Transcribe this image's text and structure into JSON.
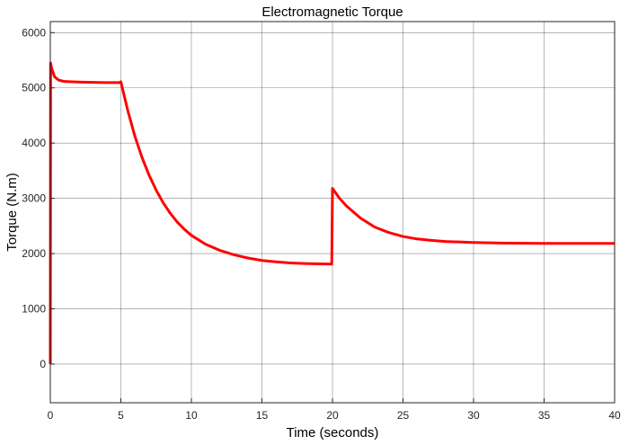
{
  "chart_data": {
    "type": "line",
    "title": "Electromagnetic Torque",
    "xlabel": "Time (seconds)",
    "ylabel": "Torque (N.m)",
    "xlim": [
      0,
      40
    ],
    "ylim": [
      -700,
      6200
    ],
    "xticks": [
      0,
      5,
      10,
      15,
      20,
      25,
      30,
      35,
      40
    ],
    "yticks": [
      0,
      1000,
      2000,
      3000,
      4000,
      5000,
      6000
    ],
    "grid": true,
    "line_color": "#ff0000",
    "series": [
      {
        "values": [
          [
            0,
            0
          ],
          [
            0.02,
            5450
          ],
          [
            0.1,
            5350
          ],
          [
            0.3,
            5200
          ],
          [
            0.6,
            5140
          ],
          [
            1.0,
            5115
          ],
          [
            2.0,
            5105
          ],
          [
            3.0,
            5100
          ],
          [
            4.0,
            5095
          ],
          [
            4.9,
            5095
          ],
          [
            5.0,
            5110
          ],
          [
            5.5,
            4580
          ],
          [
            6.0,
            4120
          ],
          [
            6.5,
            3740
          ],
          [
            7.0,
            3420
          ],
          [
            7.5,
            3150
          ],
          [
            8.0,
            2920
          ],
          [
            8.5,
            2730
          ],
          [
            9.0,
            2570
          ],
          [
            9.5,
            2440
          ],
          [
            10.0,
            2330
          ],
          [
            11.0,
            2170
          ],
          [
            12.0,
            2060
          ],
          [
            13.0,
            1980
          ],
          [
            14.0,
            1920
          ],
          [
            15.0,
            1875
          ],
          [
            16.0,
            1850
          ],
          [
            17.0,
            1830
          ],
          [
            18.0,
            1820
          ],
          [
            19.0,
            1815
          ],
          [
            19.95,
            1810
          ],
          [
            20.0,
            3180
          ],
          [
            20.5,
            3000
          ],
          [
            21.0,
            2860
          ],
          [
            22.0,
            2640
          ],
          [
            23.0,
            2480
          ],
          [
            24.0,
            2380
          ],
          [
            25.0,
            2310
          ],
          [
            26.0,
            2265
          ],
          [
            27.0,
            2240
          ],
          [
            28.0,
            2220
          ],
          [
            30.0,
            2200
          ],
          [
            32.0,
            2190
          ],
          [
            35.0,
            2185
          ],
          [
            38.0,
            2185
          ],
          [
            40.0,
            2185
          ]
        ]
      }
    ]
  }
}
